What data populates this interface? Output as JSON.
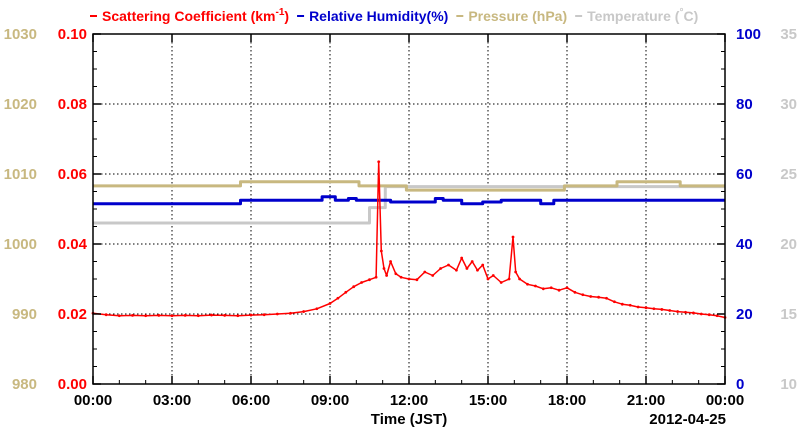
{
  "chart_data": {
    "type": "line",
    "title": "",
    "date_label": "2012-04-25",
    "xlabel": "Time (JST)",
    "x_tick_labels": [
      "00:00",
      "03:00",
      "06:00",
      "09:00",
      "12:00",
      "15:00",
      "18:00",
      "21:00",
      "00:00"
    ],
    "xlim_hours": [
      0,
      24
    ],
    "grid": true,
    "legend": [
      {
        "text": "Scattering Coefficient (km",
        "sup": "-1",
        "text_after": ")",
        "color": "#ff0000"
      },
      {
        "text": "Relative Humidity(%)",
        "color": "#0000cc"
      },
      {
        "text": "Pressure (hPa)",
        "color": "#c8b880"
      },
      {
        "text": "Temperature (",
        "sup": "°",
        "text_after": "C)",
        "color": "#c8c8c8"
      }
    ],
    "axes": {
      "pressure": {
        "side": "left-outer",
        "min": 980,
        "max": 1030,
        "ticks": [
          "980",
          "990",
          "1000",
          "1010",
          "1020",
          "1030"
        ],
        "color": "#c8b880"
      },
      "scattering": {
        "side": "left-inner",
        "min": 0.0,
        "max": 0.1,
        "ticks": [
          "0.00",
          "0.02",
          "0.04",
          "0.06",
          "0.08",
          "0.10"
        ],
        "color": "#ff0000"
      },
      "humidity": {
        "side": "right-inner",
        "min": 0,
        "max": 100,
        "ticks": [
          "0",
          "20",
          "40",
          "60",
          "80",
          "100"
        ],
        "color": "#0000cc"
      },
      "temperature": {
        "side": "right-outer",
        "min": 10,
        "max": 35,
        "ticks": [
          "10",
          "15",
          "20",
          "25",
          "30",
          "35"
        ],
        "color": "#c8c8c8"
      }
    },
    "series": [
      {
        "name": "Scattering Coefficient",
        "axis": "scattering",
        "color": "#ff0000",
        "x_hours": [
          0,
          0.5,
          1,
          1.5,
          2,
          2.5,
          3,
          3.5,
          4,
          4.5,
          5,
          5.5,
          6,
          6.5,
          7,
          7.5,
          8,
          8.5,
          9,
          9.3,
          9.6,
          9.9,
          10.2,
          10.5,
          10.75,
          10.85,
          10.95,
          11.05,
          11.15,
          11.3,
          11.5,
          11.7,
          12,
          12.3,
          12.6,
          12.9,
          13.2,
          13.5,
          13.8,
          14,
          14.2,
          14.4,
          14.6,
          14.8,
          15,
          15.2,
          15.5,
          15.8,
          15.95,
          16.05,
          16.2,
          16.5,
          16.8,
          17.1,
          17.4,
          17.7,
          18,
          18.3,
          18.6,
          18.9,
          19.2,
          19.5,
          19.8,
          20.1,
          20.4,
          20.7,
          21,
          21.3,
          21.6,
          21.9,
          22.2,
          22.5,
          22.8,
          23.1,
          23.4,
          23.7,
          24
        ],
        "values": [
          0.0202,
          0.0198,
          0.0195,
          0.0196,
          0.0195,
          0.0196,
          0.0195,
          0.0196,
          0.0195,
          0.0197,
          0.0196,
          0.0195,
          0.0197,
          0.0198,
          0.02,
          0.0202,
          0.0207,
          0.0215,
          0.023,
          0.0245,
          0.0262,
          0.0278,
          0.029,
          0.0298,
          0.0305,
          0.0635,
          0.038,
          0.033,
          0.031,
          0.035,
          0.0315,
          0.0305,
          0.03,
          0.0298,
          0.032,
          0.031,
          0.033,
          0.034,
          0.0325,
          0.036,
          0.033,
          0.035,
          0.0325,
          0.034,
          0.03,
          0.031,
          0.029,
          0.03,
          0.042,
          0.032,
          0.03,
          0.0285,
          0.028,
          0.0272,
          0.0275,
          0.0268,
          0.0275,
          0.0262,
          0.0255,
          0.025,
          0.0248,
          0.0245,
          0.0235,
          0.0228,
          0.0225,
          0.022,
          0.0218,
          0.0215,
          0.0213,
          0.021,
          0.0207,
          0.0205,
          0.0203,
          0.02,
          0.0198,
          0.0195,
          0.019
        ]
      },
      {
        "name": "Relative Humidity",
        "axis": "humidity",
        "color": "#0000cc",
        "x_hours": [
          0,
          5.6,
          5.6,
          8.7,
          8.7,
          9.2,
          9.2,
          9.7,
          9.7,
          10.0,
          10.0,
          11.3,
          11.3,
          13.0,
          13.0,
          13.3,
          13.3,
          14.0,
          14.0,
          14.8,
          14.8,
          15.5,
          15.5,
          17.0,
          17.0,
          17.5,
          17.5,
          19.5,
          19.5,
          24
        ],
        "values": [
          51.5,
          51.5,
          52.5,
          52.5,
          53.5,
          53.5,
          52.5,
          52.5,
          53,
          53,
          52.5,
          52.5,
          52,
          52,
          53,
          53,
          52.5,
          52.5,
          51.5,
          51.5,
          52,
          52,
          52.5,
          52.5,
          51.5,
          51.5,
          52.5,
          52.5,
          52.5,
          52.5
        ]
      },
      {
        "name": "Pressure",
        "axis": "pressure",
        "color": "#c8b880",
        "x_hours": [
          0,
          5.6,
          5.6,
          10.1,
          10.1,
          11.9,
          11.9,
          17.9,
          17.9,
          19.9,
          19.9,
          22.3,
          22.3,
          24
        ],
        "values": [
          1008.3,
          1008.3,
          1008.9,
          1008.9,
          1008.3,
          1008.3,
          1007.7,
          1007.7,
          1008.3,
          1008.3,
          1008.9,
          1008.9,
          1008.3,
          1008.3
        ]
      },
      {
        "name": "Temperature",
        "axis": "temperature",
        "color": "#c8c8c8",
        "x_hours": [
          0,
          10.5,
          10.5,
          11.1,
          11.1,
          24
        ],
        "values": [
          21.5,
          21.5,
          22.6,
          22.6,
          24.1,
          24.1
        ]
      }
    ]
  }
}
